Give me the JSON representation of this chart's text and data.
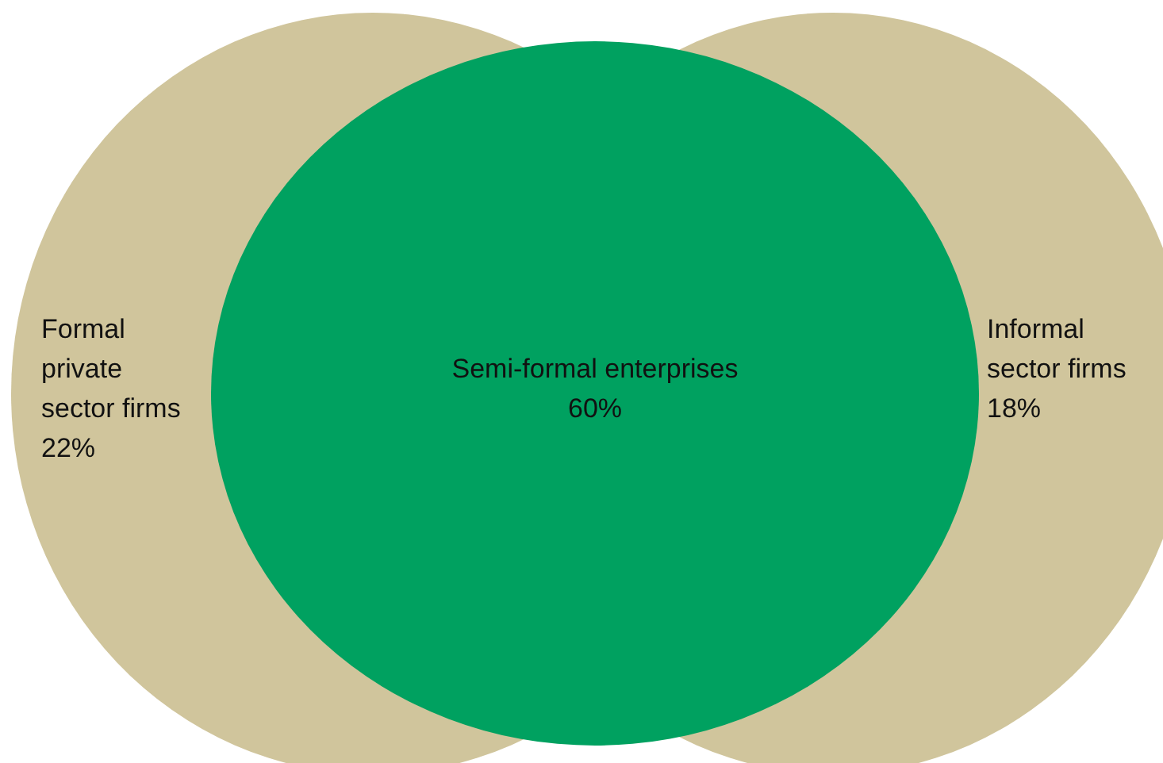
{
  "chart_data": {
    "type": "other",
    "categories": [
      "Formal private sector firms",
      "Semi-formal enterprises",
      "Informal sector firms"
    ],
    "values": [
      22,
      60,
      18
    ],
    "value_labels": [
      "22%",
      "60%",
      "18%"
    ],
    "colors": [
      "#d0c59c",
      "#00a160",
      "#d0c59c"
    ]
  }
}
